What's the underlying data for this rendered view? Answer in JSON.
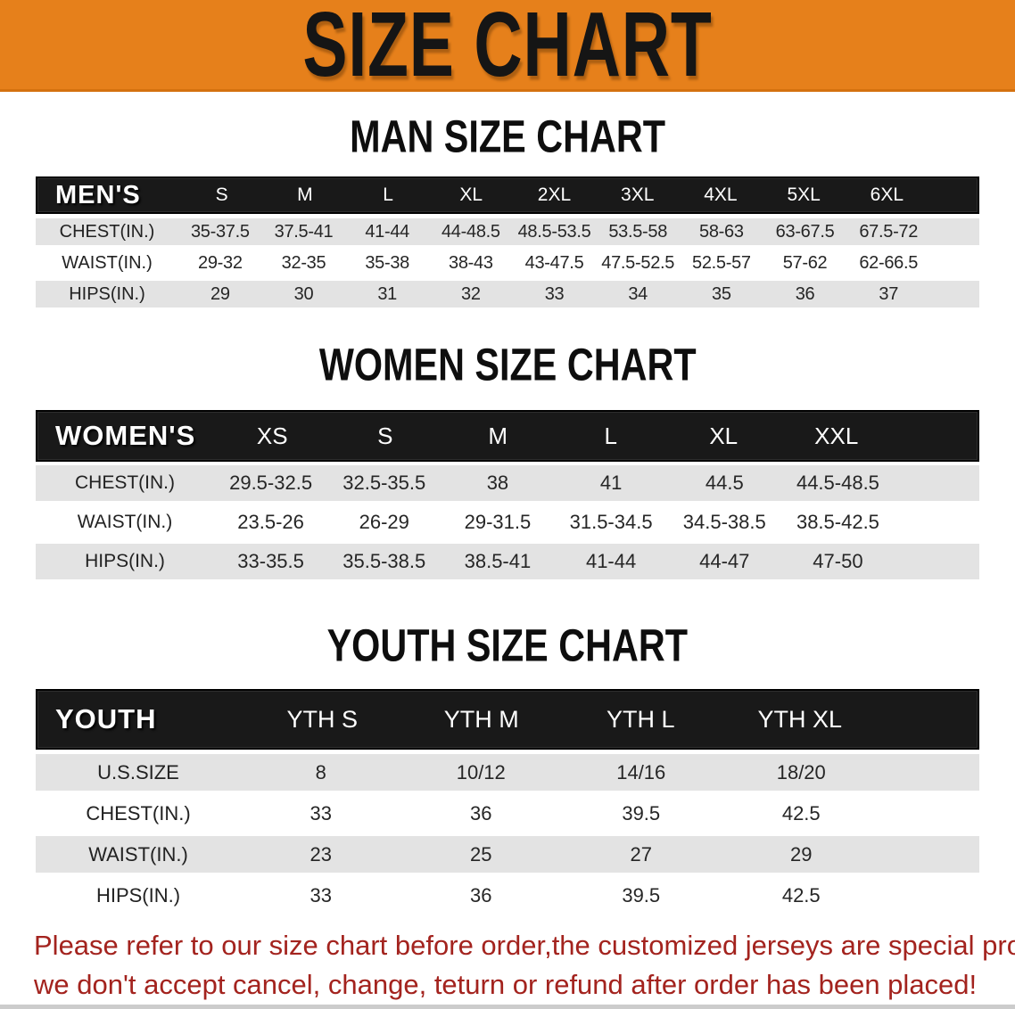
{
  "banner": {
    "title": "SIZE CHART",
    "bg_color": "#E6801B",
    "text_color": "#151515"
  },
  "colors": {
    "table_header_bg": "#191919",
    "table_header_text": "#ffffff",
    "row_shade": "#E3E3E3",
    "footer_text": "#A3231E"
  },
  "sections": [
    {
      "heading": "MAN SIZE CHART",
      "header_label": "MEN'S",
      "columns": [
        "S",
        "M",
        "L",
        "XL",
        "2XL",
        "3XL",
        "4XL",
        "5XL",
        "6XL"
      ],
      "rows": [
        {
          "label": "CHEST(IN.)",
          "values": [
            "35-37.5",
            "37.5-41",
            "41-44",
            "44-48.5",
            "48.5-53.5",
            "53.5-58",
            "58-63",
            "63-67.5",
            "67.5-72"
          ]
        },
        {
          "label": "WAIST(IN.)",
          "values": [
            "29-32",
            "32-35",
            "35-38",
            "38-43",
            "43-47.5",
            "47.5-52.5",
            "52.5-57",
            "57-62",
            "62-66.5"
          ]
        },
        {
          "label": "HIPS(IN.)",
          "values": [
            "29",
            "30",
            "31",
            "32",
            "33",
            "34",
            "35",
            "36",
            "37"
          ]
        }
      ]
    },
    {
      "heading": "WOMEN SIZE CHART",
      "header_label": "WOMEN'S",
      "columns": [
        "XS",
        "S",
        "M",
        "L",
        "XL",
        "XXL"
      ],
      "rows": [
        {
          "label": "CHEST(IN.)",
          "values": [
            "29.5-32.5",
            "32.5-35.5",
            "38",
            "41",
            "44.5",
            "44.5-48.5"
          ]
        },
        {
          "label": "WAIST(IN.)",
          "values": [
            "23.5-26",
            "26-29",
            "29-31.5",
            "31.5-34.5",
            "34.5-38.5",
            "38.5-42.5"
          ]
        },
        {
          "label": "HIPS(IN.)",
          "values": [
            "33-35.5",
            "35.5-38.5",
            "38.5-41",
            "41-44",
            "44-47",
            "47-50"
          ]
        }
      ]
    },
    {
      "heading": "YOUTH SIZE CHART",
      "header_label": "YOUTH",
      "columns": [
        "YTH S",
        "YTH M",
        "YTH L",
        "YTH XL"
      ],
      "rows": [
        {
          "label": "U.S.SIZE",
          "values": [
            "8",
            "10/12",
            "14/16",
            "18/20"
          ]
        },
        {
          "label": "CHEST(IN.)",
          "values": [
            "33",
            "36",
            "39.5",
            "42.5"
          ]
        },
        {
          "label": "WAIST(IN.)",
          "values": [
            "23",
            "25",
            "27",
            "29"
          ]
        },
        {
          "label": "HIPS(IN.)",
          "values": [
            "33",
            "36",
            "39.5",
            "42.5"
          ]
        }
      ]
    }
  ],
  "footer": {
    "line1": "Please refer to our size chart before order,the customized jerseys are special products,",
    "line2": "we don't accept cancel, change, teturn or refund after order has been placed!"
  }
}
